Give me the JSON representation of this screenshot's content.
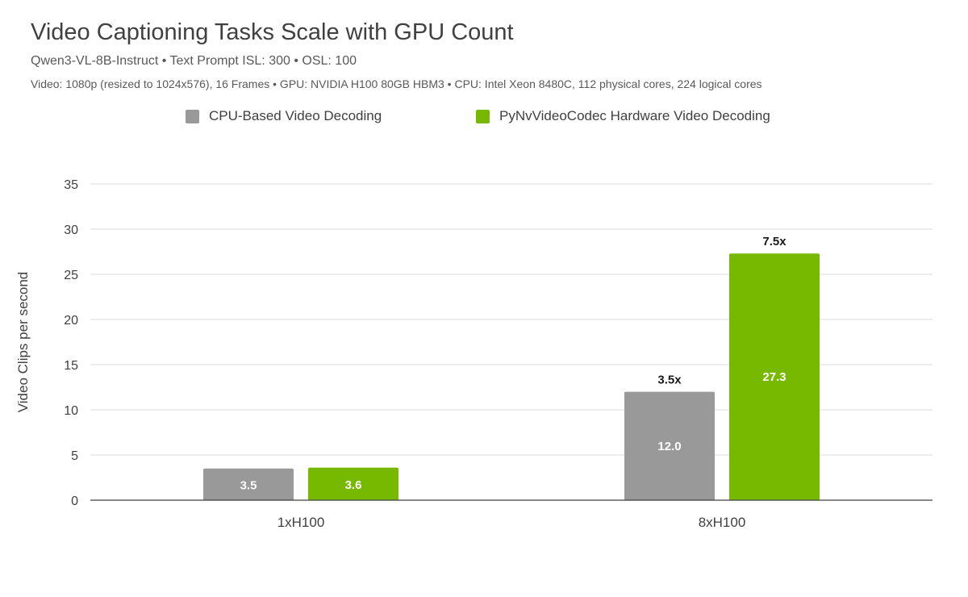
{
  "chart_data": {
    "type": "bar",
    "title": "Video Captioning Tasks Scale with GPU Count",
    "subtitle": "Qwen3-VL-8B-Instruct  •  Text Prompt ISL: 300  •  OSL: 100",
    "details": "Video: 1080p (resized to 1024x576), 16 Frames  •  GPU: NVIDIA H100 80GB HBM3  •  CPU: Intel Xeon 8480C, 112 physical cores, 224 logical cores",
    "xlabel": "",
    "ylabel": "Video Clips per second",
    "ylim": [
      0,
      35
    ],
    "yticks": [
      0,
      5,
      10,
      15,
      20,
      25,
      30,
      35
    ],
    "grid": true,
    "legend_position": "top",
    "categories": [
      "1xH100",
      "8xH100"
    ],
    "series": [
      {
        "name": "CPU-Based Video Decoding",
        "color": "#999999",
        "values": [
          3.5,
          12.0
        ],
        "labels": [
          "3.5",
          "12.0"
        ],
        "annotations": [
          "",
          "3.5x"
        ]
      },
      {
        "name": "PyNvVideoCodec Hardware Video Decoding",
        "color": "#76b900",
        "values": [
          3.6,
          27.3
        ],
        "labels": [
          "3.6",
          "27.3"
        ],
        "annotations": [
          "",
          "7.5x"
        ]
      }
    ]
  }
}
